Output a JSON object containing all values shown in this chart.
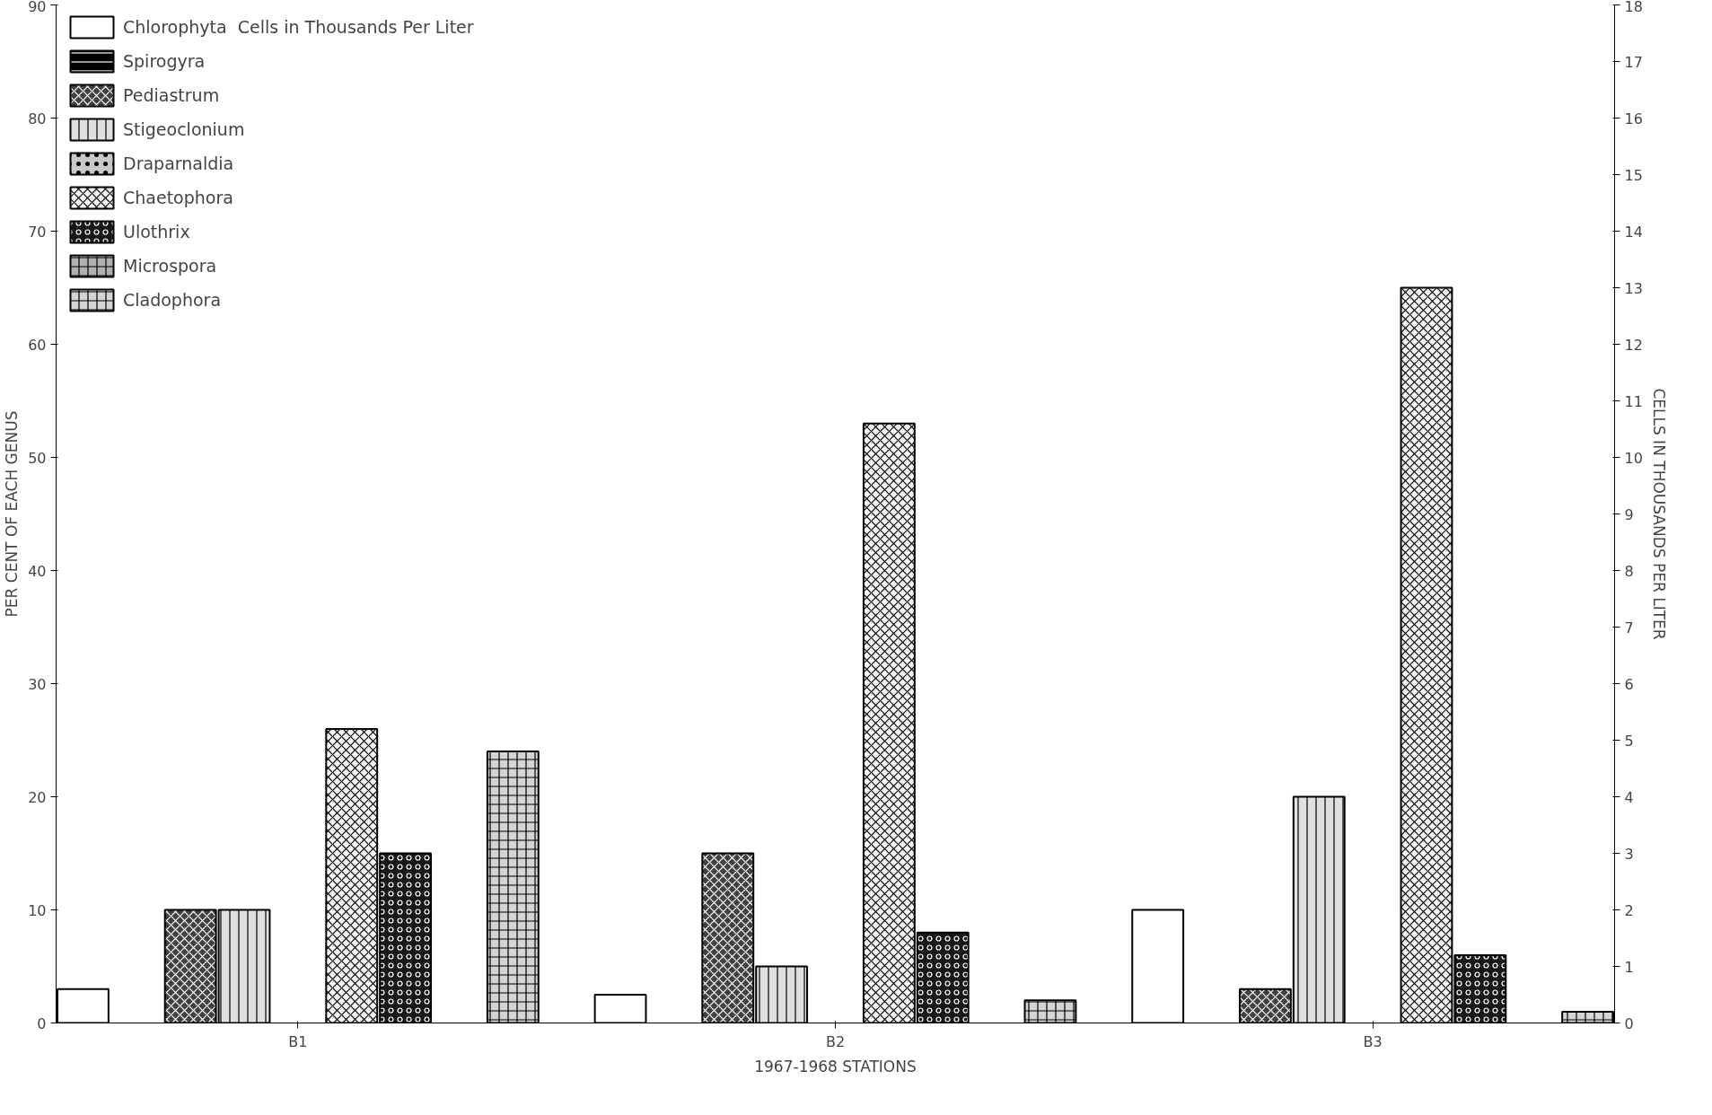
{
  "chart_data": {
    "type": "bar",
    "xlabel": "1967-1968 STATIONS",
    "ylabel": "PER CENT OF EACH GENUS",
    "y2label": "CELLS IN THOUSANDS PER LITER",
    "categories": [
      "B1",
      "B2",
      "B3"
    ],
    "series": [
      {
        "name": "Chlorophyta  Cells in Thousands Per Liter",
        "color": "#ffffff",
        "values": [
          0.6,
          0.5,
          2
        ],
        "axis": "y2"
      },
      {
        "name": "Spirogyra",
        "color": "#000000",
        "values": [
          null,
          null,
          null
        ]
      },
      {
        "name": "Pediastrum",
        "color": "#404040",
        "values": [
          10,
          15,
          3
        ]
      },
      {
        "name": "Stigeoclonium",
        "color": "#e0e0e0",
        "values": [
          10,
          5,
          20
        ]
      },
      {
        "name": "Draparnaldia",
        "color": "#c8c8c8",
        "values": [
          null,
          null,
          null
        ]
      },
      {
        "name": "Chaetophora",
        "color": "#f4f4f4",
        "values": [
          26,
          53,
          65
        ]
      },
      {
        "name": "Ulothrix",
        "color": "#181818",
        "values": [
          15,
          8,
          6
        ]
      },
      {
        "name": "Microspora",
        "color": "#b0b0b0",
        "values": [
          null,
          null,
          null
        ]
      },
      {
        "name": "Cladophora",
        "color": "#d4d4d4",
        "values": [
          24,
          2,
          1
        ]
      }
    ],
    "ylim": [
      0,
      90
    ],
    "yticks": [
      0,
      10,
      20,
      30,
      40,
      50,
      60,
      70,
      80,
      90
    ],
    "y2lim": [
      0,
      18
    ],
    "y2ticks": [
      0,
      1,
      2,
      3,
      4,
      5,
      6,
      7,
      8,
      9,
      10,
      11,
      12,
      13,
      14,
      15,
      16,
      17,
      18
    ],
    "grid": false,
    "legend": "top left"
  }
}
